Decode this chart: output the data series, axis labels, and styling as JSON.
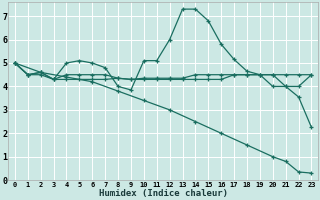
{
  "xlabel": "Humidex (Indice chaleur)",
  "bg_color": "#cce8e4",
  "grid_color": "#ffffff",
  "line_color": "#1a6e60",
  "xlim": [
    0,
    23
  ],
  "ylim": [
    0,
    7.6
  ],
  "yticks": [
    0,
    1,
    2,
    3,
    4,
    5,
    6,
    7
  ],
  "xticks": [
    0,
    1,
    2,
    3,
    4,
    5,
    6,
    7,
    8,
    9,
    10,
    11,
    12,
    13,
    14,
    15,
    16,
    17,
    18,
    19,
    20,
    21,
    22,
    23
  ],
  "series1_x": [
    0,
    1,
    2,
    3,
    4,
    5,
    6,
    7,
    8,
    9,
    10,
    11,
    12,
    13,
    14,
    15,
    16,
    17,
    18,
    19,
    20,
    21,
    22,
    23
  ],
  "series1_y": [
    5.0,
    4.5,
    4.5,
    4.3,
    5.0,
    5.1,
    5.0,
    4.8,
    4.0,
    3.85,
    5.1,
    5.1,
    6.0,
    7.3,
    7.3,
    6.8,
    5.8,
    5.15,
    4.65,
    4.5,
    4.5,
    4.0,
    3.55,
    2.25
  ],
  "series2_x": [
    0,
    1,
    2,
    3,
    4,
    5,
    6,
    7,
    8,
    9,
    10,
    11,
    12,
    13,
    14,
    15,
    16,
    17,
    18,
    19,
    20,
    21,
    22,
    23
  ],
  "series2_y": [
    5.0,
    4.5,
    4.6,
    4.3,
    4.5,
    4.5,
    4.5,
    4.5,
    4.35,
    4.3,
    4.3,
    4.3,
    4.3,
    4.3,
    4.3,
    4.3,
    4.3,
    4.5,
    4.5,
    4.5,
    4.5,
    4.5,
    4.5,
    4.5
  ],
  "series3_x": [
    0,
    1,
    2,
    3,
    4,
    5,
    6,
    7,
    8,
    9,
    10,
    11,
    12,
    13,
    14,
    15,
    16,
    17,
    18,
    19,
    20,
    21,
    22,
    23
  ],
  "series3_y": [
    5.0,
    4.5,
    4.6,
    4.3,
    4.3,
    4.3,
    4.3,
    4.3,
    4.35,
    4.3,
    4.35,
    4.35,
    4.35,
    4.35,
    4.5,
    4.5,
    4.5,
    4.5,
    4.5,
    4.5,
    4.0,
    4.0,
    4.0,
    4.5
  ],
  "series4_x": [
    0,
    2,
    4,
    6,
    8,
    10,
    12,
    14,
    16,
    18,
    20,
    21,
    22,
    23
  ],
  "series4_y": [
    5.0,
    4.6,
    4.4,
    4.2,
    3.8,
    3.4,
    3.0,
    2.5,
    2.0,
    1.5,
    1.0,
    0.8,
    0.35,
    0.3
  ]
}
